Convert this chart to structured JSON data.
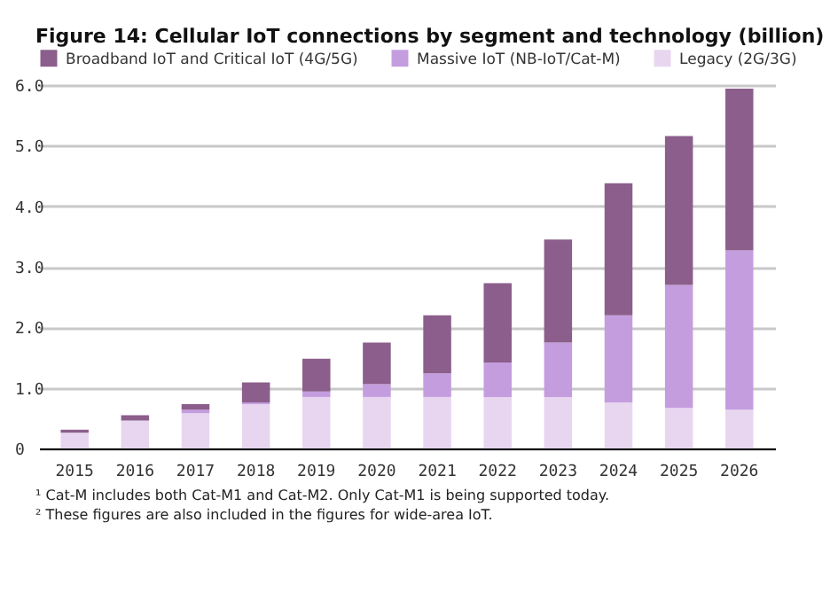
{
  "chart_data": {
    "type": "bar",
    "title": "Figure 14: Cellular IoT connections by segment and technology (billion)",
    "stacked": true,
    "legend": "top",
    "grid": "y",
    "categories": [
      "2015",
      "2016",
      "2017",
      "2018",
      "2019",
      "2020",
      "2021",
      "2022",
      "2023",
      "2024",
      "2025",
      "2026"
    ],
    "series": [
      {
        "name": "Legacy (2G/3G)",
        "color": "#e8d6f0",
        "values": [
          0.26,
          0.46,
          0.58,
          0.73,
          0.85,
          0.85,
          0.85,
          0.85,
          0.85,
          0.76,
          0.67,
          0.64
        ]
      },
      {
        "name": "Massive IoT (NB-IoT/Cat-M)",
        "color": "#c49ddf",
        "values": [
          0,
          0,
          0.06,
          0.03,
          0.09,
          0.21,
          0.39,
          0.57,
          0.9,
          1.44,
          2.03,
          2.63
        ]
      },
      {
        "name": "Broadband IoT and Critical IoT (4G/5G)",
        "color": "#8b5e8b",
        "values": [
          0.05,
          0.09,
          0.09,
          0.33,
          0.54,
          0.69,
          0.96,
          1.31,
          1.7,
          2.18,
          2.46,
          2.67
        ]
      }
    ],
    "ylim": [
      0,
      6
    ],
    "yticks": [
      0,
      {
        "value": 1,
        "label": "1.0"
      },
      {
        "value": 2,
        "label": "2.0"
      },
      {
        "value": 3,
        "label": "3.0"
      },
      {
        "value": 4,
        "label": "4.0"
      },
      {
        "value": 5,
        "label": "5.0"
      },
      {
        "value": 6,
        "label": "6.0"
      }
    ],
    "annotations": [
      "¹ Cat-M includes both Cat-M1 and Cat-M2. Only Cat-M1 is being supported today.",
      "² These figures are also included in the figures for wide-area IoT."
    ]
  }
}
